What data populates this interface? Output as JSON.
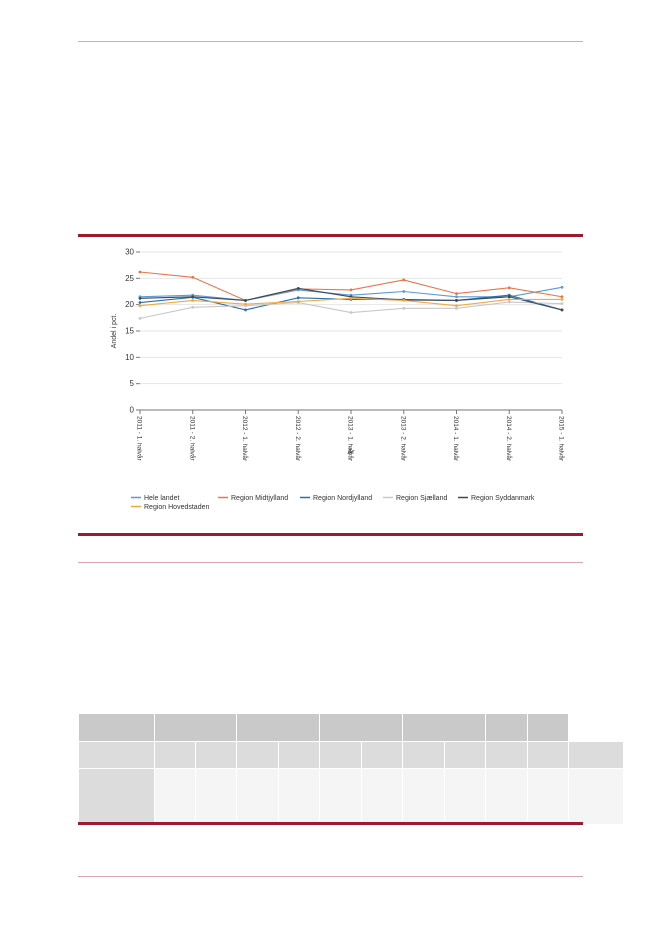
{
  "chart_data": {
    "type": "line",
    "categories": [
      "2011 - 1. halvår",
      "2011 - 2. halvår",
      "2012 - 1. halvår",
      "2012 - 2. halvår",
      "2013 - 1. halvår",
      "2013 - 2. halvår",
      "2014 - 1. halvår",
      "2014 - 2. halvår",
      "2015 - 1. halvår"
    ],
    "series": [
      {
        "name": "Hele landet",
        "color": "#5b9bd5",
        "values": [
          21.5,
          21.8,
          20.8,
          22.8,
          21.8,
          22.5,
          21.5,
          21.5,
          23.3
        ]
      },
      {
        "name": "Region Midtjylland",
        "color": "#e8744a",
        "values": [
          26.2,
          25.2,
          20.8,
          23.0,
          22.8,
          24.7,
          22.1,
          23.2,
          21.5
        ]
      },
      {
        "name": "Region Nordjylland",
        "color": "#2a6fa8",
        "values": [
          20.4,
          21.4,
          19.0,
          21.3,
          21.0,
          21.0,
          20.8,
          21.8,
          19.0
        ]
      },
      {
        "name": "Region Sjælland",
        "color": "#c8c8c8",
        "values": [
          17.4,
          19.5,
          19.8,
          20.4,
          18.5,
          19.3,
          19.3,
          20.5,
          20.2
        ]
      },
      {
        "name": "Region Syddanmark",
        "color": "#3a4a5a",
        "values": [
          21.2,
          21.5,
          20.8,
          23.1,
          21.5,
          20.9,
          20.8,
          21.5,
          19.0
        ]
      },
      {
        "name": "Region Hovedstaden",
        "color": "#f4a742",
        "values": [
          19.8,
          20.8,
          20.1,
          20.6,
          21.2,
          20.8,
          19.8,
          21.0,
          21.0
        ]
      }
    ],
    "xlabel": "År",
    "ylabel": "Andel i pct.",
    "ylim": [
      0,
      30
    ],
    "yticks": [
      0,
      5,
      10,
      15,
      20,
      25,
      30
    ],
    "grid": true,
    "legend_position": "bottom"
  },
  "table": {
    "row_count": 3,
    "col_count": 12
  }
}
